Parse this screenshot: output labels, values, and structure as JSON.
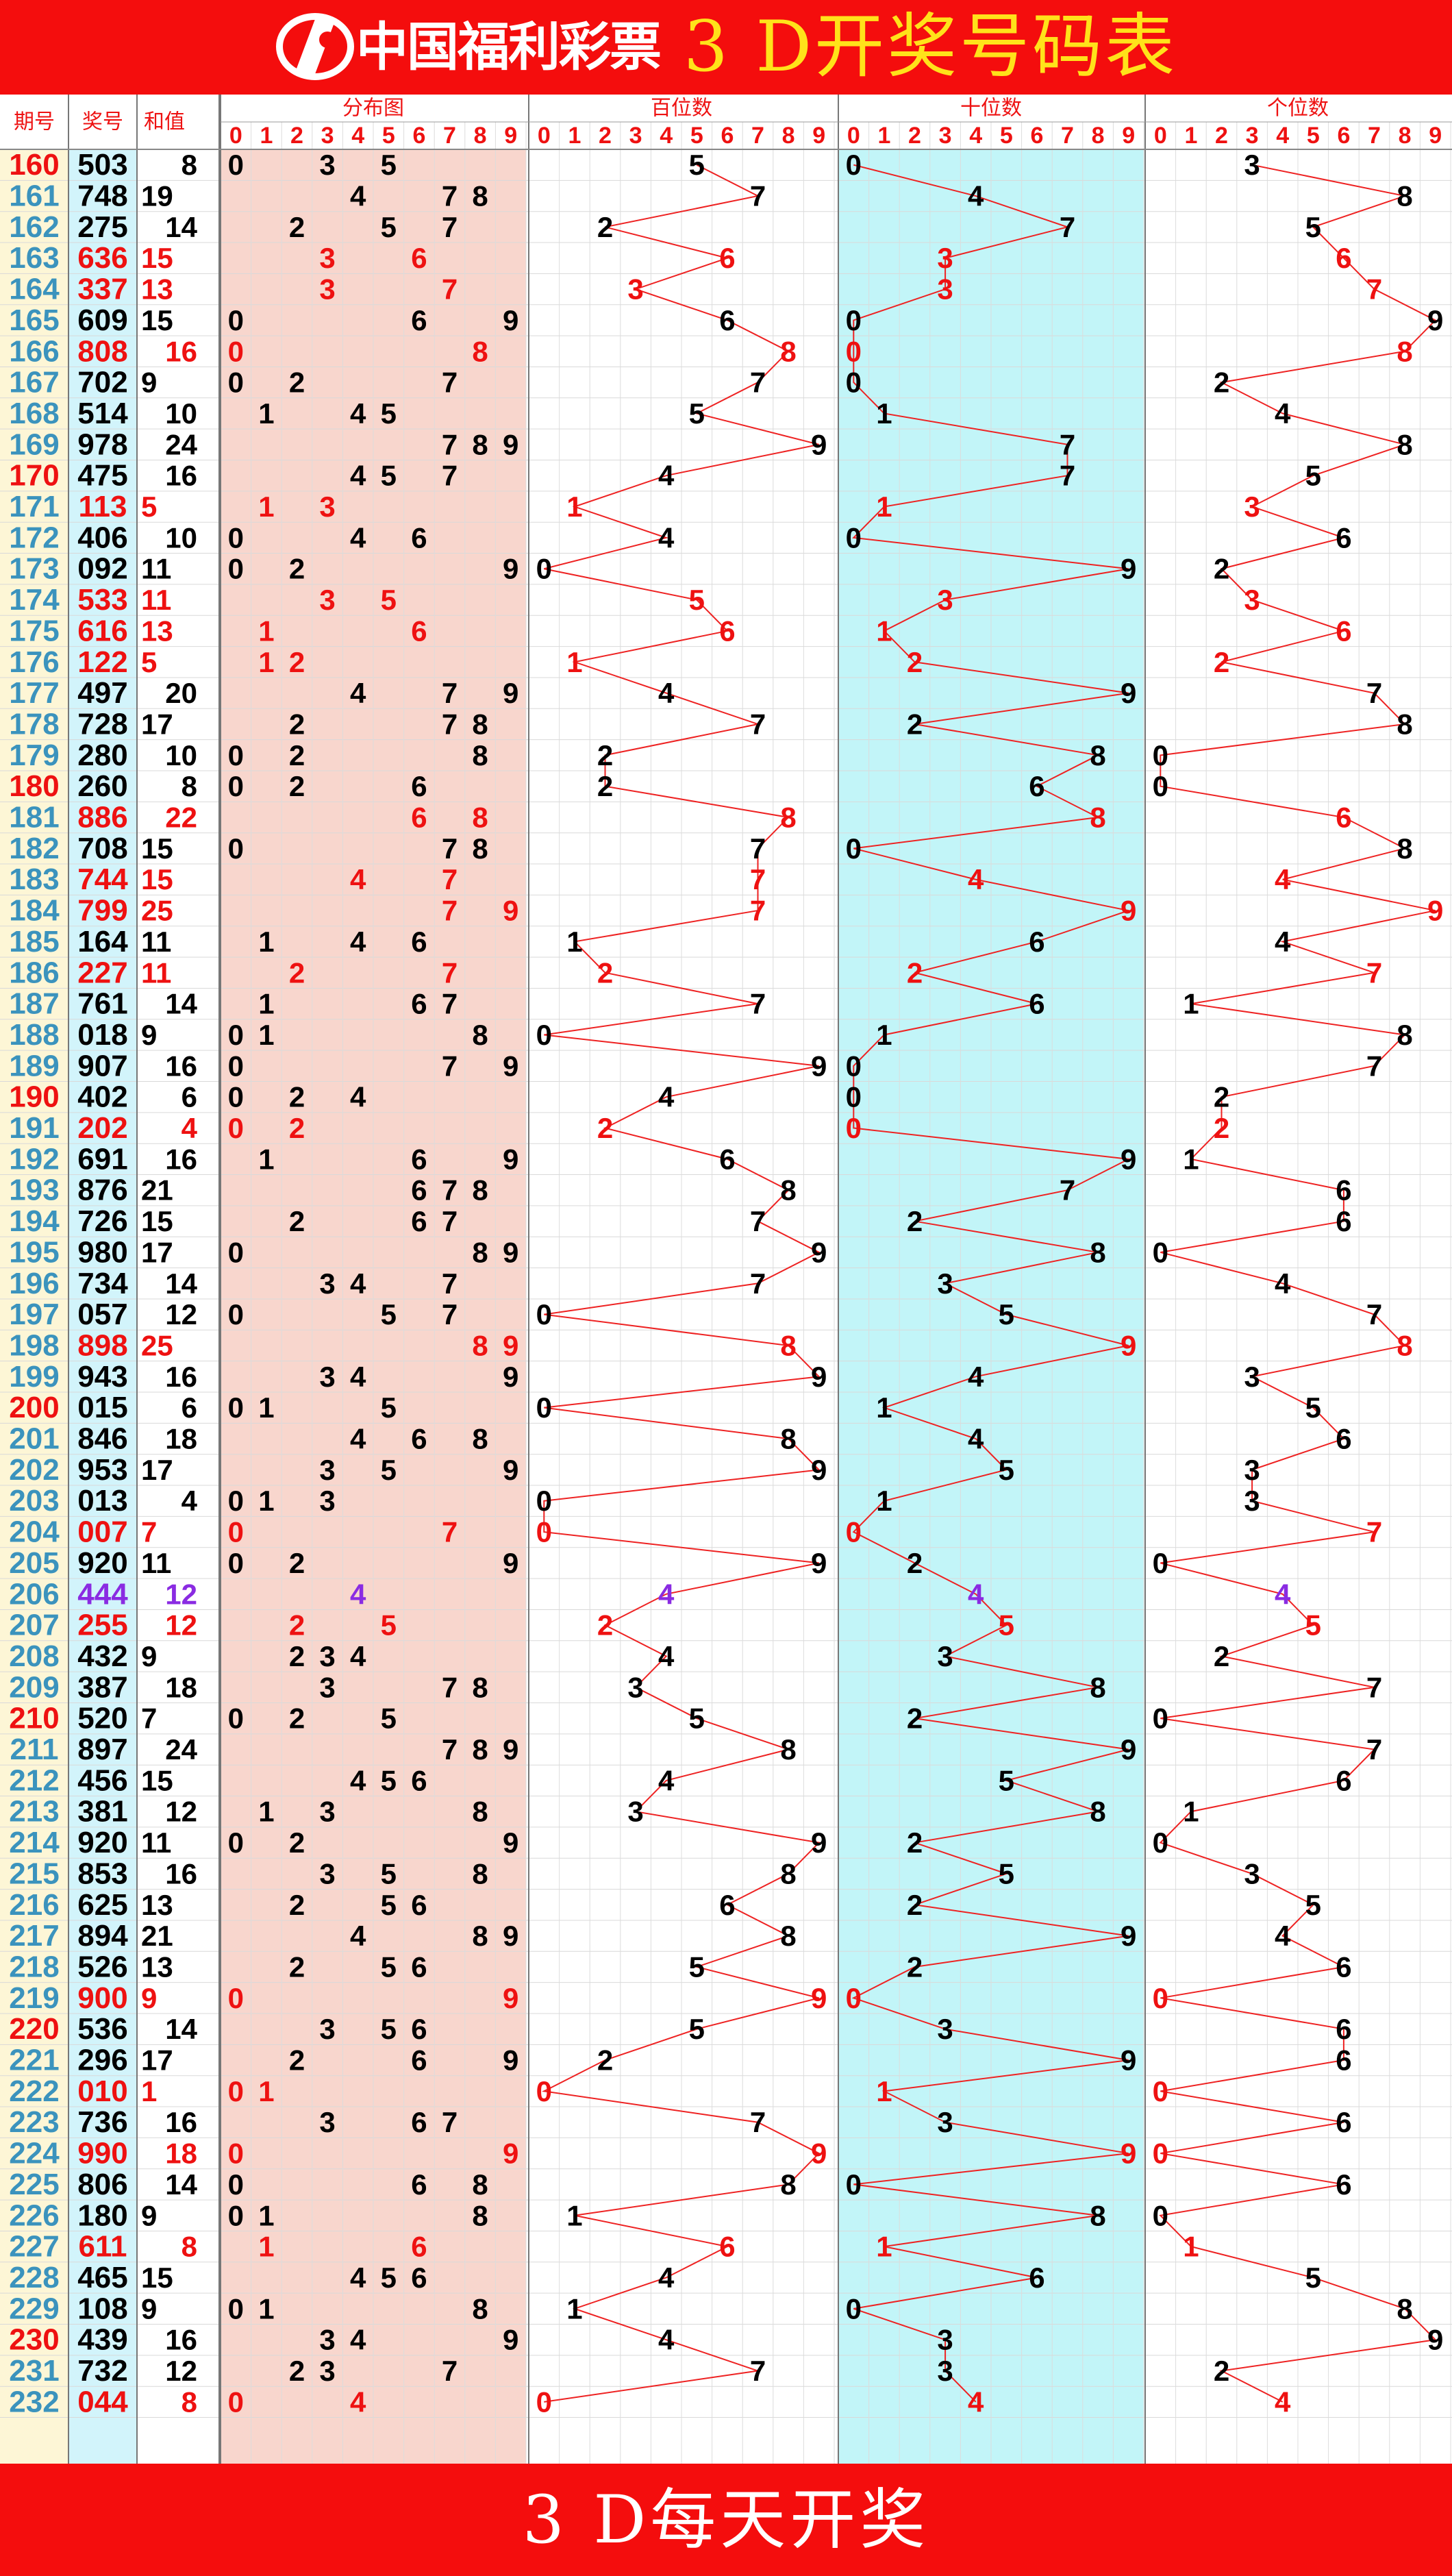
{
  "header": {
    "logo_text": "中国福利彩票",
    "title": "3 D开奖号码表"
  },
  "footer": {
    "title": "3 D每天开奖"
  },
  "columns": {
    "period": "期号",
    "number": "奖号",
    "sum": "和值",
    "distribution": "分布图",
    "hundreds": "百位数",
    "tens": "十位数",
    "units": "个位数"
  },
  "digit_labels": [
    "0",
    "1",
    "2",
    "3",
    "4",
    "5",
    "6",
    "7",
    "8",
    "9"
  ],
  "colors": {
    "banner": "#f40d0d",
    "title_text": "#ffe21a",
    "red": "#ee1111",
    "purple": "#8a2be2",
    "period_blue": "#3b93bd",
    "period_bg": "#fdf6d6",
    "number_bg": "#d2f4fb",
    "distribution_bg": "#f8d6cd",
    "tens_bg": "#c2f5f8",
    "line": "#ee2222"
  },
  "chart_data": {
    "type": "table",
    "title": "3 D开奖号码表",
    "periods": [
      "160",
      "161",
      "162",
      "163",
      "164",
      "165",
      "166",
      "167",
      "168",
      "169",
      "170",
      "171",
      "172",
      "173",
      "174",
      "175",
      "176",
      "177",
      "178",
      "179",
      "180",
      "181",
      "182",
      "183",
      "184",
      "185",
      "186",
      "187",
      "188",
      "189",
      "190",
      "191",
      "192",
      "193",
      "194",
      "195",
      "196",
      "197",
      "198",
      "199",
      "200",
      "201",
      "202",
      "203",
      "204",
      "205",
      "206",
      "207",
      "208",
      "209",
      "210",
      "211",
      "212",
      "213",
      "214",
      "215",
      "216",
      "217",
      "218",
      "219",
      "220",
      "221",
      "222",
      "223",
      "224",
      "225",
      "226",
      "227",
      "228",
      "229",
      "230",
      "231",
      "232"
    ],
    "numbers": [
      "503",
      "748",
      "275",
      "636",
      "337",
      "609",
      "808",
      "702",
      "514",
      "978",
      "475",
      "113",
      "406",
      "092",
      "533",
      "616",
      "122",
      "497",
      "728",
      "280",
      "260",
      "886",
      "708",
      "744",
      "799",
      "164",
      "227",
      "761",
      "018",
      "907",
      "402",
      "202",
      "691",
      "876",
      "726",
      "980",
      "734",
      "057",
      "898",
      "943",
      "015",
      "846",
      "953",
      "013",
      "007",
      "920",
      "444",
      "255",
      "432",
      "387",
      "520",
      "897",
      "456",
      "381",
      "920",
      "853",
      "625",
      "894",
      "526",
      "900",
      "536",
      "296",
      "010",
      "736",
      "990",
      "806",
      "180",
      "611",
      "465",
      "108",
      "439",
      "732",
      "044"
    ],
    "sums": [
      "8",
      "19",
      "14",
      "15",
      "13",
      "15",
      "16",
      "9",
      "10",
      "24",
      "16",
      "5",
      "10",
      "11",
      "11",
      "13",
      "5",
      "20",
      "17",
      "10",
      "8",
      "22",
      "15",
      "15",
      "25",
      "11",
      "11",
      "14",
      "9",
      "16",
      "6",
      "4",
      "16",
      "21",
      "15",
      "17",
      "14",
      "12",
      "25",
      "16",
      "6",
      "18",
      "17",
      "4",
      "7",
      "11",
      "12",
      "12",
      "9",
      "18",
      "7",
      "24",
      "15",
      "12",
      "11",
      "16",
      "13",
      "21",
      "13",
      "9",
      "14",
      "17",
      "1",
      "16",
      "18",
      "14",
      "9",
      "8",
      "15",
      "9",
      "16",
      "12",
      "8"
    ],
    "sum_right_aligned": [
      1,
      0,
      1,
      0,
      0,
      0,
      1,
      0,
      1,
      1,
      1,
      0,
      1,
      0,
      0,
      0,
      0,
      1,
      0,
      1,
      1,
      1,
      0,
      0,
      0,
      0,
      0,
      1,
      0,
      1,
      1,
      1,
      1,
      0,
      0,
      0,
      1,
      1,
      0,
      1,
      1,
      1,
      0,
      1,
      0,
      0,
      1,
      1,
      0,
      1,
      0,
      1,
      0,
      1,
      0,
      1,
      0,
      0,
      0,
      0,
      1,
      0,
      0,
      1,
      1,
      1,
      0,
      1,
      0,
      0,
      1,
      1,
      1
    ]
  }
}
